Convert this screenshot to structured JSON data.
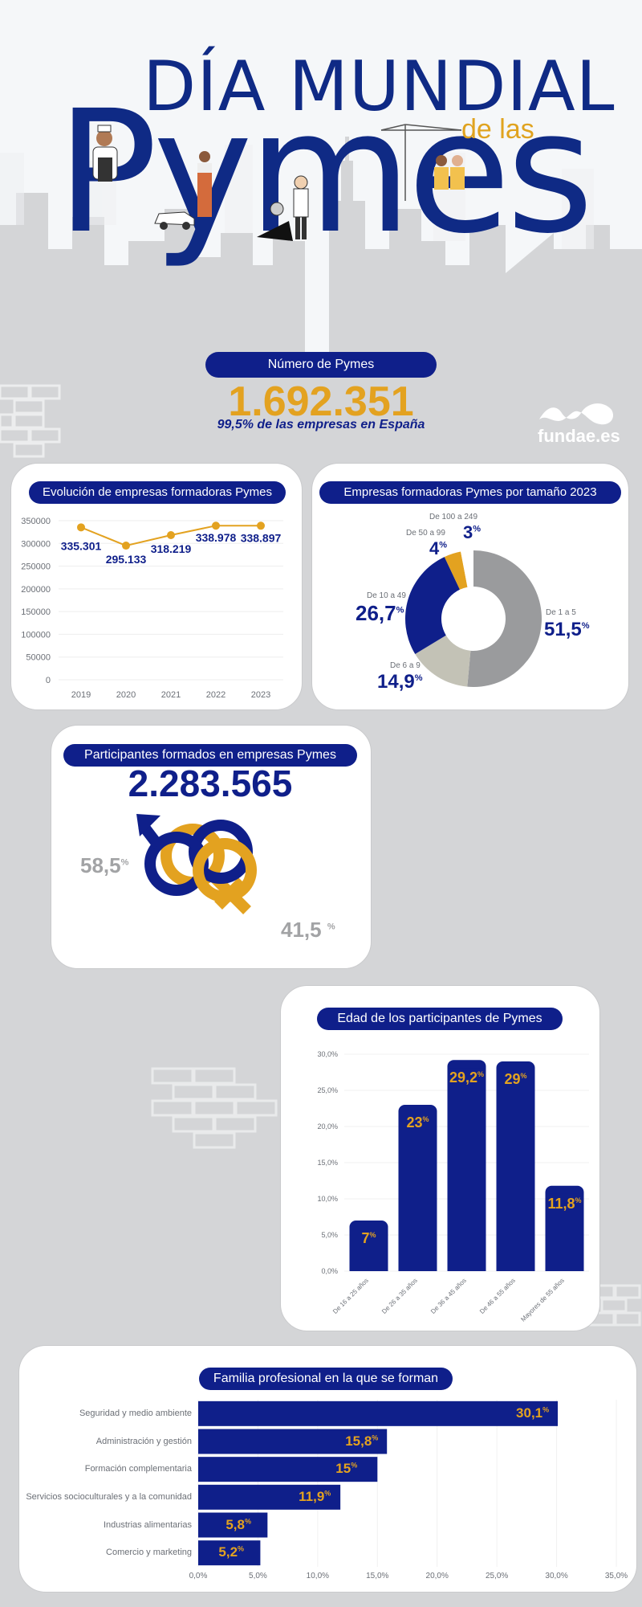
{
  "header": {
    "title_line1": "DÍA MUNDIAL",
    "title_line2": "de las",
    "title_line3": "Pymes"
  },
  "summary": {
    "label": "Número de Pymes",
    "value": "1.692.351",
    "subtitle": "99,5% de las empresas en España"
  },
  "brand": {
    "name": "fundae.es"
  },
  "colors": {
    "navy": "#0f1f8a",
    "gold": "#e3a220",
    "gray": "#9a9b9d",
    "lightgray": "#c3c2b6"
  },
  "chart_data": [
    {
      "type": "line",
      "title": "Evolución de empresas formadoras Pymes",
      "x": [
        "2019",
        "2020",
        "2021",
        "2022",
        "2023"
      ],
      "values": [
        335301,
        295133,
        318219,
        338978,
        338897
      ],
      "data_labels": [
        "335.301",
        "295.133",
        "318.219",
        "338.978",
        "338.897"
      ],
      "ylim": [
        0,
        350000
      ],
      "yticks": [
        "0",
        "50000",
        "100000",
        "150000",
        "200000",
        "250000",
        "300000",
        "350000"
      ],
      "grid": true
    },
    {
      "type": "pie",
      "title": "Empresas formadoras Pymes por tamaño 2023",
      "slices": [
        {
          "label": "De 1 a 5",
          "value": 51.5,
          "text": "51,5",
          "color": "#9a9b9d"
        },
        {
          "label": "De 6 a 9",
          "value": 14.9,
          "text": "14,9",
          "color": "#c3c2b6"
        },
        {
          "label": "De 10 a 49",
          "value": 26.7,
          "text": "26,7",
          "color": "#0f1f8a"
        },
        {
          "label": "De 50 a 99",
          "value": 4,
          "text": "4",
          "color": "#e3a220"
        },
        {
          "label": "De 100 a 249",
          "value": 3,
          "text": "3",
          "color": "#ffffff"
        }
      ],
      "unit": "%"
    },
    {
      "type": "pie",
      "title": "Participantes formados en empresas Pymes",
      "total": "2.283.565",
      "slices": [
        {
          "label": "male",
          "value": 58.5,
          "text": "58,5",
          "color": "#0f1f8a"
        },
        {
          "label": "female",
          "value": 41.5,
          "text": "41,5",
          "color": "#e3a220"
        }
      ],
      "unit": "%"
    },
    {
      "type": "bar",
      "title": "Edad de los participantes de Pymes",
      "categories": [
        "De 16 a 25 años",
        "De 26 a 35 años",
        "De 36 a 45 años",
        "De 46 a 55 años",
        "Mayores de 55 años"
      ],
      "values": [
        7,
        23,
        29.2,
        29,
        11.8
      ],
      "data_labels": [
        "7",
        "23",
        "29,2",
        "29",
        "11,8"
      ],
      "yticks": [
        "0,0%",
        "5,0%",
        "10,0%",
        "15,0%",
        "20,0%",
        "25,0%",
        "30,0%"
      ],
      "ylim": [
        0,
        30
      ],
      "unit": "%"
    },
    {
      "type": "bar",
      "orientation": "horizontal",
      "title": "Familia profesional en la que se forman",
      "categories": [
        "Seguridad y medio ambiente",
        "Administración y gestión",
        "Formación complementaria",
        "Servicios socioculturales y a la comunidad",
        "Industrias alimentarias",
        "Comercio y marketing"
      ],
      "values": [
        30.1,
        15.8,
        15,
        11.9,
        5.8,
        5.2
      ],
      "data_labels": [
        "30,1",
        "15,8",
        "15",
        "11,9",
        "5,8",
        "5,2"
      ],
      "xticks": [
        "0,0%",
        "5,0%",
        "10,0%",
        "15,0%",
        "20,0%",
        "25,0%",
        "30,0%",
        "35,0%"
      ],
      "xlim": [
        0,
        35
      ],
      "unit": "%"
    }
  ]
}
